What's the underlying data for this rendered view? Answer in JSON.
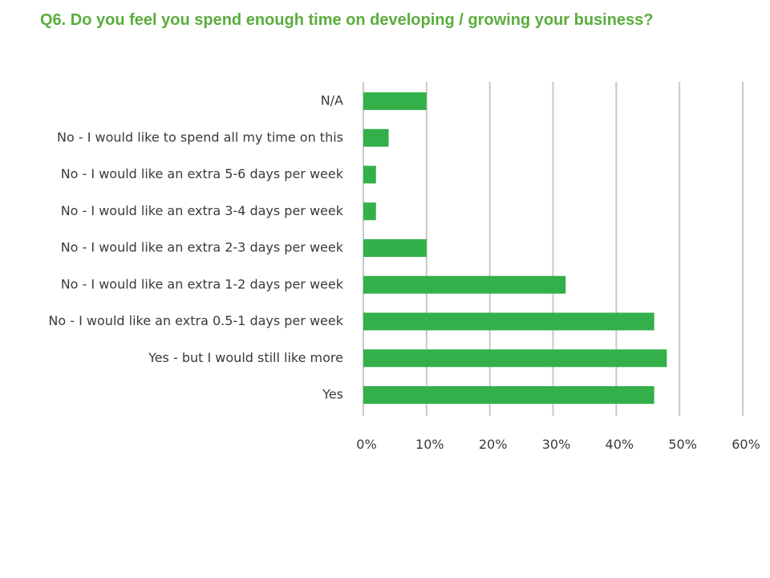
{
  "slide": {
    "title": "Q6. Do you feel you spend enough time on developing / growing your business?"
  },
  "chart_data": {
    "type": "bar",
    "orientation": "horizontal",
    "categories": [
      "N/A",
      "No - I would like to spend all my time on this",
      "No - I would like an extra 5-6 days per week",
      "No - I would like an extra 3-4 days per week",
      "No - I would like an extra 2-3 days per week",
      "No - I would like an extra 1-2 days per week",
      "No - I would like an extra 0.5-1 days per week",
      "Yes - but I would still like more",
      "Yes"
    ],
    "values": [
      10,
      4,
      2,
      2,
      10,
      32,
      46,
      48,
      46
    ],
    "xlim": [
      0,
      60
    ],
    "ticks": [
      0,
      10,
      20,
      30,
      40,
      50,
      60
    ],
    "tick_labels": [
      "0%",
      "10%",
      "20%",
      "30%",
      "40%",
      "50%",
      "60%"
    ],
    "bar_color": "#33b04a",
    "grid": true,
    "legend": false
  }
}
